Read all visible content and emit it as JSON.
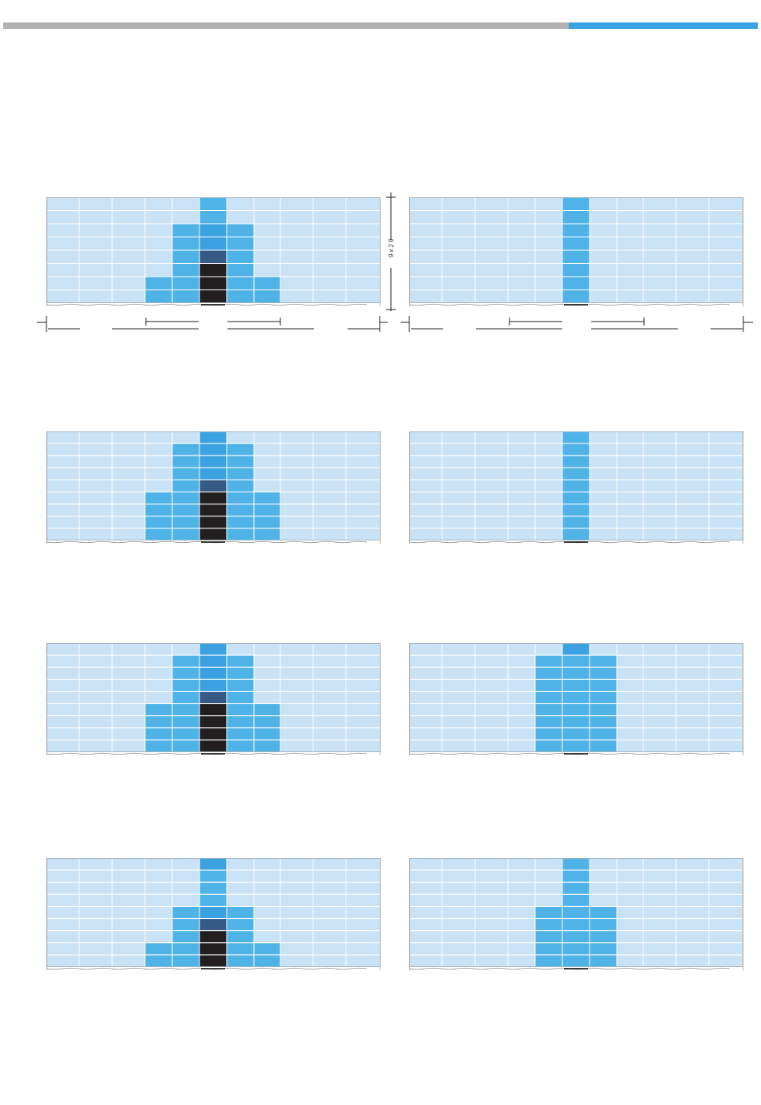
{
  "colors": {
    "background": "#ffffff",
    "light_cell": "#c9e2f5",
    "medium_cell": "#4fb3e8",
    "bright_cell": "#3aa2e0",
    "dark_blue_cell": "#345a85",
    "black_cell": "#231f20",
    "cell_border": "#ffffff",
    "top_bar_gray": "#b2b2b2",
    "top_bar_blue": "#3aa2e0",
    "annotation_line": "#231f20"
  },
  "legend_codes": {
    "0": "light",
    "1": "medium",
    "2": "bright",
    "3": "dark-blue",
    "4": "black"
  },
  "dimension_label": "9x20",
  "panels": [
    {
      "name": "panel-1-left",
      "rows": [
        "00000100000",
        "00000100000",
        "00001210000",
        "00001210000",
        "00001310000",
        "00001410000",
        "00011411000",
        "00011411000"
      ]
    },
    {
      "name": "panel-1-right",
      "rows": [
        "00000100000",
        "00000100000",
        "00000100000",
        "00000100000",
        "00000100000",
        "00000100000",
        "00000100000",
        "00000100000"
      ]
    },
    {
      "name": "panel-2-left",
      "rows": [
        "00000200000",
        "00001210000",
        "00001210000",
        "00001210000",
        "00001310000",
        "00011411000",
        "00011411000",
        "00011411000",
        "00011411000"
      ]
    },
    {
      "name": "panel-2-right",
      "rows": [
        "00000100000",
        "00000100000",
        "00000100000",
        "00000100000",
        "00000100000",
        "00000100000",
        "00000100000",
        "00000100000",
        "00000100000"
      ]
    },
    {
      "name": "panel-3-left",
      "rows": [
        "00000200000",
        "00001210000",
        "00001210000",
        "00001210000",
        "00001310000",
        "00011411000",
        "00011411000",
        "00011411000",
        "00011411000"
      ]
    },
    {
      "name": "panel-3-right",
      "rows": [
        "00000200000",
        "00001110000",
        "00001110000",
        "00001110000",
        "00001110000",
        "00001110000",
        "00001110000",
        "00001110000",
        "00001110000"
      ]
    },
    {
      "name": "panel-4-left",
      "rows": [
        "00000200000",
        "00000100000",
        "00000100000",
        "00000100000",
        "00001210000",
        "00001310000",
        "00001410000",
        "00011411000",
        "00011411000"
      ]
    },
    {
      "name": "panel-4-right",
      "rows": [
        "00000100000",
        "00000100000",
        "00000100000",
        "00000100000",
        "00001110000",
        "00001110000",
        "00001110000",
        "00001110000",
        "00001110000"
      ]
    }
  ]
}
